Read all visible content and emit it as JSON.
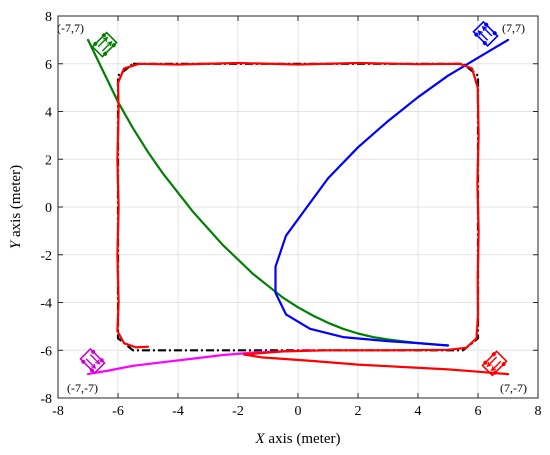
{
  "chart_data": {
    "type": "line",
    "xlabel_var": "X",
    "xlabel_rest": " axis (meter)",
    "ylabel_var": "Y",
    "ylabel_rest": " axis (meter)",
    "xlim": [
      -8,
      8
    ],
    "ylim": [
      -8,
      8
    ],
    "xticks": [
      -8,
      -6,
      -4,
      -2,
      0,
      2,
      4,
      6,
      8
    ],
    "yticks": [
      -8,
      -6,
      -4,
      -2,
      0,
      2,
      4,
      6,
      8
    ],
    "grid": true,
    "series": [
      {
        "color": "#000000",
        "style": "dash-dot",
        "points": [
          [
            -5.5,
            6
          ],
          [
            5.5,
            6
          ],
          [
            6,
            5.5
          ],
          [
            6,
            -5.5
          ],
          [
            5.5,
            -6
          ],
          [
            -5.5,
            -6
          ],
          [
            -6,
            -5.5
          ],
          [
            -6,
            5.5
          ],
          [
            -5.5,
            6
          ]
        ]
      },
      {
        "color": "#007f00",
        "style": "solid",
        "points": [
          [
            -7,
            7
          ],
          [
            -6.5,
            5.7
          ],
          [
            -6,
            4.4
          ],
          [
            -5.5,
            3.3
          ],
          [
            -5,
            2.3
          ],
          [
            -4.5,
            1.4
          ],
          [
            -4,
            0.6
          ],
          [
            -3.5,
            -0.2
          ],
          [
            -3,
            -0.9
          ],
          [
            -2.5,
            -1.6
          ],
          [
            -2,
            -2.2
          ],
          [
            -1.5,
            -2.8
          ],
          [
            -1,
            -3.3
          ],
          [
            -0.5,
            -3.8
          ],
          [
            0,
            -4.2
          ],
          [
            0.5,
            -4.55
          ],
          [
            1,
            -4.85
          ],
          [
            1.5,
            -5.1
          ],
          [
            2,
            -5.3
          ],
          [
            2.5,
            -5.45
          ],
          [
            3,
            -5.55
          ],
          [
            3.5,
            -5.63
          ],
          [
            4,
            -5.7
          ],
          [
            4.5,
            -5.75
          ],
          [
            5,
            -5.8
          ]
        ]
      },
      {
        "color": "#0000ff",
        "style": "solid",
        "points": [
          [
            7,
            7
          ],
          [
            6.2,
            6.4
          ],
          [
            5,
            5.5
          ],
          [
            4,
            4.6
          ],
          [
            3,
            3.6
          ],
          [
            2,
            2.5
          ],
          [
            1,
            1.2
          ],
          [
            0.3,
            0
          ],
          [
            -0.4,
            -1.2
          ],
          [
            -0.75,
            -2.5
          ],
          [
            -0.75,
            -3.6
          ],
          [
            -0.4,
            -4.5
          ],
          [
            0.4,
            -5.1
          ],
          [
            1.5,
            -5.45
          ],
          [
            3,
            -5.62
          ],
          [
            4,
            -5.7
          ],
          [
            5,
            -5.8
          ]
        ]
      },
      {
        "color": "#ff00ff",
        "style": "solid",
        "points": [
          [
            -7,
            -7
          ],
          [
            -6.3,
            -6.85
          ],
          [
            -5.5,
            -6.65
          ],
          [
            -4.5,
            -6.5
          ],
          [
            -3.5,
            -6.35
          ],
          [
            -2.5,
            -6.2
          ],
          [
            -1.5,
            -6.1
          ],
          [
            -0.5,
            -6.05
          ],
          [
            0.5,
            -6.0
          ]
        ]
      },
      {
        "color": "#ff0000",
        "style": "solid",
        "points": [
          [
            7,
            -7
          ],
          [
            6,
            -6.9
          ],
          [
            5,
            -6.8
          ],
          [
            3.5,
            -6.7
          ],
          [
            2,
            -6.6
          ],
          [
            0.5,
            -6.45
          ],
          [
            -1.2,
            -6.3
          ],
          [
            -1.8,
            -6.18
          ],
          [
            -0.5,
            -6.05
          ],
          [
            1,
            -6.0
          ],
          [
            3,
            -6.0
          ],
          [
            5,
            -5.98
          ],
          [
            5.6,
            -5.9
          ],
          [
            5.95,
            -5.5
          ],
          [
            6,
            -4.5
          ],
          [
            5.99,
            -3
          ],
          [
            6.02,
            -1
          ],
          [
            5.98,
            1
          ],
          [
            6.02,
            3
          ],
          [
            5.99,
            5
          ],
          [
            5.8,
            5.8
          ],
          [
            5.4,
            6
          ],
          [
            4,
            5.98
          ],
          [
            2,
            6.03
          ],
          [
            0,
            5.97
          ],
          [
            -2,
            6.03
          ],
          [
            -4,
            5.97
          ],
          [
            -5.3,
            6
          ],
          [
            -5.8,
            5.8
          ],
          [
            -6,
            5.2
          ],
          [
            -5.98,
            4
          ],
          [
            -6.02,
            2
          ],
          [
            -5.98,
            0
          ],
          [
            -6.02,
            -2
          ],
          [
            -5.98,
            -4
          ],
          [
            -6.02,
            -5.2
          ],
          [
            -5.8,
            -5.7
          ],
          [
            -5.4,
            -5.88
          ],
          [
            -5,
            -5.85
          ]
        ]
      }
    ],
    "annotations": [
      {
        "text": "(-7,7)",
        "x": -7,
        "y": 7,
        "anchor": "end",
        "dx": -4,
        "dy": -8
      },
      {
        "text": "(7,7)",
        "x": 7,
        "y": 7,
        "anchor": "start",
        "dx": -6,
        "dy": -8
      },
      {
        "text": "(-7,-7)",
        "x": -7,
        "y": -7,
        "anchor": "end",
        "dx": 10,
        "dy": 18
      },
      {
        "text": "(7,-7)",
        "x": 7,
        "y": -7,
        "anchor": "start",
        "dx": -8,
        "dy": 18
      }
    ],
    "vehicles": [
      {
        "x": -6.45,
        "y": 6.8,
        "angle": 45,
        "color": "#007f00"
      },
      {
        "x": 6.25,
        "y": 7.25,
        "angle": -45,
        "color": "#0000ff"
      },
      {
        "x": -6.85,
        "y": -6.45,
        "angle": 135,
        "color": "#cc00cc"
      },
      {
        "x": 6.55,
        "y": -6.55,
        "angle": -135,
        "color": "#ff0000"
      }
    ]
  }
}
